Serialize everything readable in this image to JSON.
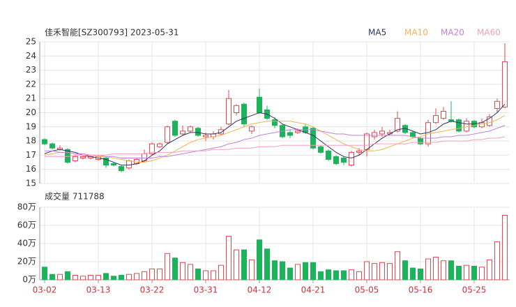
{
  "chart_data": [
    {
      "type": "candlestick",
      "title": "佳禾智能[SZ300793] 2023-05-31",
      "open": [
        18.1,
        17.8,
        17.4,
        17.4,
        16.6,
        16.8,
        16.8,
        16.7,
        16.8,
        16.4,
        16.2,
        16.1,
        16.4,
        16.6,
        17.1,
        17.6,
        17.9,
        19.4,
        18.5,
        18.7,
        18.9,
        18.3,
        18.3,
        18.5,
        19.2,
        20.0,
        20.6,
        18.7,
        21.1,
        20.2,
        19.5,
        19.1,
        18.6,
        18.6,
        19.0,
        18.9,
        17.6,
        17.3,
        16.9,
        16.8,
        16.3,
        17.2,
        17.4,
        18.3,
        18.5,
        18.5,
        18.7,
        19.1,
        18.6,
        18.2,
        17.8,
        19.3,
        19.6,
        19.5,
        19.5,
        18.7,
        19.4,
        19.0,
        19.1,
        20.3,
        20.4
      ],
      "high": [
        18.2,
        17.9,
        17.7,
        17.5,
        17.0,
        17.0,
        17.0,
        17.0,
        16.9,
        16.5,
        16.3,
        16.7,
        16.8,
        17.4,
        17.9,
        17.9,
        19.1,
        19.5,
        19.1,
        19.1,
        19.0,
        18.6,
        18.7,
        19.0,
        21.6,
        20.6,
        20.7,
        19.1,
        21.7,
        20.5,
        19.7,
        19.2,
        18.8,
        18.9,
        19.2,
        19.0,
        17.7,
        17.4,
        17.0,
        16.9,
        17.3,
        17.5,
        18.6,
        18.8,
        19.0,
        18.8,
        20.1,
        19.2,
        18.7,
        18.3,
        19.5,
        20.3,
        20.4,
        20.8,
        19.6,
        19.6,
        19.5,
        19.6,
        19.9,
        21.0,
        24.9
      ],
      "low": [
        17.7,
        17.4,
        17.3,
        16.4,
        16.5,
        16.7,
        16.7,
        16.6,
        16.1,
        16.2,
        15.8,
        16.0,
        16.3,
        16.5,
        17.0,
        17.5,
        17.8,
        18.3,
        18.4,
        18.6,
        18.3,
        18.0,
        18.1,
        18.4,
        19.1,
        19.8,
        19.0,
        18.5,
        19.9,
        19.5,
        18.9,
        18.2,
        18.2,
        18.5,
        18.5,
        17.4,
        17.1,
        16.6,
        16.3,
        16.3,
        16.2,
        17.0,
        16.9,
        18.1,
        18.3,
        18.4,
        18.6,
        18.5,
        18.2,
        17.7,
        17.6,
        19.2,
        19.5,
        19.3,
        18.6,
        18.6,
        18.9,
        18.9,
        19.0,
        20.0,
        20.3
      ],
      "close": [
        17.8,
        17.5,
        17.5,
        16.5,
        16.9,
        16.9,
        16.9,
        16.9,
        16.3,
        16.3,
        15.9,
        16.6,
        16.7,
        17.1,
        17.8,
        17.8,
        19.0,
        18.4,
        18.7,
        19.0,
        18.4,
        18.4,
        18.5,
        18.8,
        21.0,
        20.5,
        19.2,
        19.0,
        20.0,
        19.6,
        19.1,
        18.3,
        18.4,
        18.7,
        18.6,
        17.5,
        17.2,
        16.7,
        16.4,
        16.5,
        17.2,
        17.3,
        18.5,
        18.6,
        18.7,
        18.6,
        19.6,
        18.6,
        18.3,
        17.8,
        19.3,
        19.8,
        20.1,
        19.4,
        18.7,
        19.4,
        19.0,
        19.3,
        19.7,
        20.8,
        23.6
      ],
      "series": [
        {
          "name": "MA5",
          "color": "#2d3364",
          "values": [
            17.1,
            17.3,
            17.4,
            17.3,
            17.2,
            17.0,
            16.9,
            16.8,
            16.7,
            16.5,
            16.3,
            16.3,
            16.4,
            16.6,
            17.0,
            17.3,
            17.8,
            18.1,
            18.4,
            18.6,
            18.6,
            18.5,
            18.5,
            18.6,
            19.0,
            19.4,
            19.6,
            19.8,
            20.0,
            19.9,
            19.6,
            19.2,
            19.0,
            18.8,
            18.6,
            18.4,
            18.0,
            17.6,
            17.2,
            16.9,
            16.8,
            17.0,
            17.4,
            17.8,
            18.2,
            18.5,
            18.8,
            18.9,
            18.7,
            18.5,
            18.6,
            18.8,
            19.2,
            19.4,
            19.3,
            19.2,
            19.2,
            19.3,
            19.6,
            20.0,
            20.6
          ]
        },
        {
          "name": "MA10",
          "color": "#f2b451",
          "values": [
            17.0,
            17.1,
            17.2,
            17.2,
            17.1,
            17.0,
            17.0,
            16.9,
            16.9,
            16.8,
            16.7,
            16.6,
            16.5,
            16.5,
            16.6,
            16.8,
            17.0,
            17.3,
            17.6,
            17.9,
            18.1,
            18.2,
            18.3,
            18.4,
            18.6,
            18.8,
            19.0,
            19.2,
            19.3,
            19.4,
            19.4,
            19.4,
            19.4,
            19.3,
            19.2,
            19.0,
            18.7,
            18.4,
            18.1,
            17.8,
            17.6,
            17.4,
            17.3,
            17.3,
            17.4,
            17.6,
            17.8,
            18.0,
            18.2,
            18.3,
            18.5,
            18.6,
            18.7,
            18.8,
            18.9,
            19.0,
            19.1,
            19.2,
            19.3,
            19.5,
            19.8
          ]
        },
        {
          "name": "MA20",
          "color": "#c17fdc",
          "values": [
            17.3,
            17.3,
            17.2,
            17.2,
            17.1,
            17.1,
            17.0,
            17.0,
            16.9,
            16.9,
            16.8,
            16.8,
            16.8,
            16.8,
            16.8,
            16.9,
            16.9,
            17.0,
            17.1,
            17.2,
            17.3,
            17.4,
            17.5,
            17.6,
            17.8,
            17.9,
            18.1,
            18.2,
            18.4,
            18.5,
            18.6,
            18.7,
            18.8,
            18.8,
            18.8,
            18.8,
            18.7,
            18.6,
            18.5,
            18.5,
            18.4,
            18.4,
            18.4,
            18.4,
            18.4,
            18.4,
            18.4,
            18.4,
            18.3,
            18.2,
            18.2,
            18.2,
            18.3,
            18.3,
            18.4,
            18.4,
            18.5,
            18.6,
            18.7,
            18.9,
            19.1
          ]
        },
        {
          "name": "MA60",
          "color": "#f3a0bd",
          "values": [
            16.9,
            16.9,
            16.9,
            16.9,
            17.0,
            17.0,
            17.0,
            17.0,
            17.0,
            17.1,
            17.1,
            17.1,
            17.1,
            17.1,
            17.2,
            17.2,
            17.2,
            17.2,
            17.3,
            17.3,
            17.3,
            17.3,
            17.4,
            17.4,
            17.4,
            17.5,
            17.5,
            17.5,
            17.6,
            17.6,
            17.6,
            17.7,
            17.7,
            17.7,
            17.7,
            17.7,
            17.7,
            17.7,
            17.7,
            17.7,
            17.7,
            17.7,
            17.7,
            17.8,
            17.8,
            17.8,
            17.8,
            17.8,
            17.9,
            17.9,
            17.9,
            17.9,
            18.0,
            18.0,
            18.0,
            18.0,
            18.1,
            18.1,
            18.2,
            18.2,
            18.3
          ]
        }
      ],
      "ylim": [
        15,
        25
      ],
      "yticks": [
        15,
        16,
        17,
        18,
        19,
        20,
        21,
        22,
        23,
        24,
        25
      ],
      "grid": true,
      "up_color": "#e8464e",
      "down_color": "#1db35b"
    },
    {
      "type": "bar",
      "title": "成交量 711788",
      "categories": [
        "03-02",
        null,
        null,
        null,
        null,
        null,
        null,
        "03-13",
        null,
        null,
        null,
        null,
        null,
        null,
        "03-22",
        null,
        null,
        null,
        null,
        null,
        null,
        "03-31",
        null,
        null,
        null,
        null,
        null,
        null,
        "04-12",
        null,
        null,
        null,
        null,
        null,
        null,
        "04-21",
        null,
        null,
        null,
        null,
        null,
        null,
        "05-05",
        null,
        null,
        null,
        null,
        null,
        null,
        "05-16",
        null,
        null,
        null,
        null,
        null,
        null,
        "05-25",
        null,
        null,
        null,
        null
      ],
      "values": [
        14,
        6,
        6,
        9,
        5,
        4,
        5,
        5,
        7,
        4,
        5,
        6,
        7,
        9,
        12,
        12,
        29,
        24,
        19,
        17,
        12,
        10,
        10,
        16,
        48,
        33,
        33,
        22,
        44,
        34,
        21,
        20,
        13,
        17,
        19,
        19,
        9,
        11,
        10,
        10,
        11,
        9,
        20,
        18,
        19,
        18,
        31,
        21,
        13,
        12,
        23,
        25,
        21,
        21,
        15,
        16,
        15,
        14,
        22,
        42,
        71.1788
      ],
      "ylim": [
        0,
        80
      ],
      "yticks": [
        {
          "value": 0,
          "label": "0万"
        },
        {
          "value": 20,
          "label": "20万"
        },
        {
          "value": 40,
          "label": "40万"
        },
        {
          "value": 60,
          "label": "60万"
        },
        {
          "value": 80,
          "label": "80万"
        }
      ],
      "grid": true
    }
  ]
}
